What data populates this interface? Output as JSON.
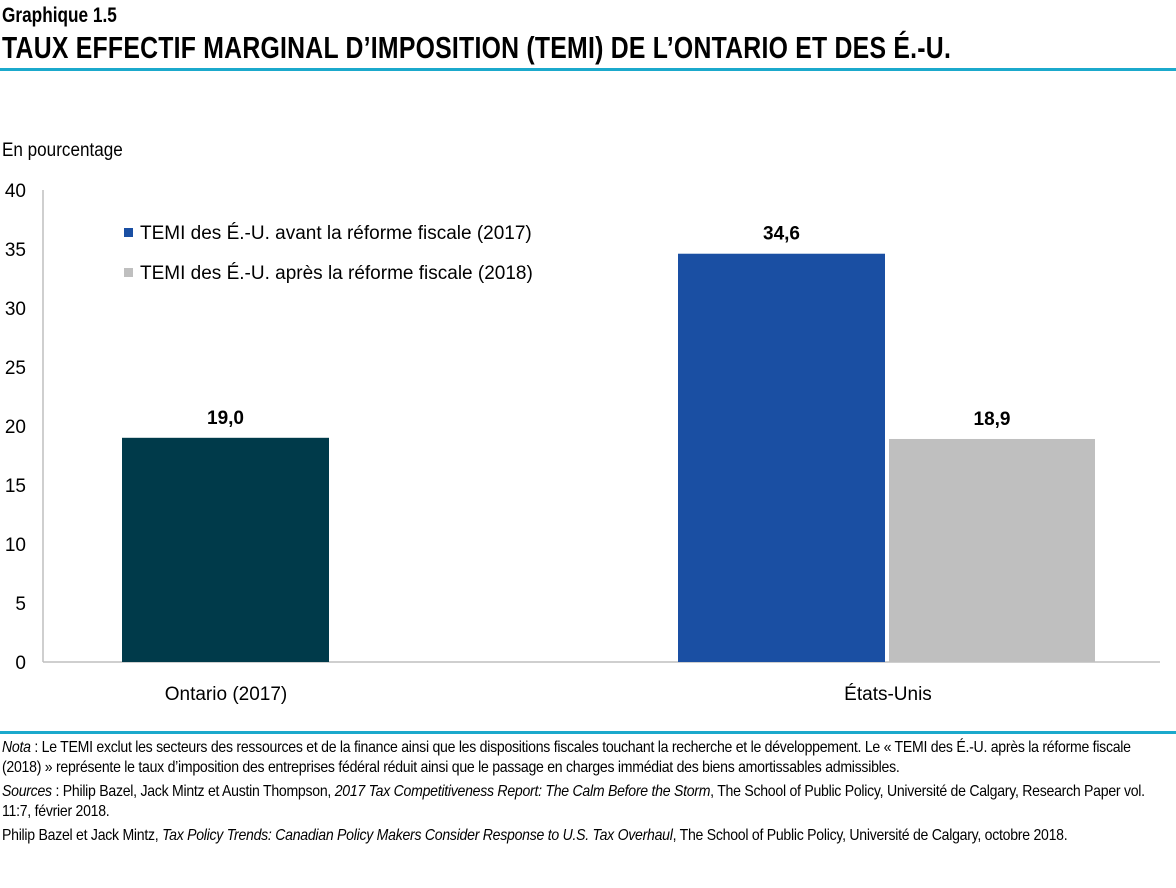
{
  "header": {
    "supertitle": "Graphique 1.5",
    "title": "TAUX EFFECTIF MARGINAL D’IMPOSITION (TEMI) DE L’ONTARIO ET DES É.-U."
  },
  "colors": {
    "accent": "#1ba9cc",
    "ontario": "#003a4a",
    "us_before": "#1a4fa3",
    "us_after": "#bfbfbf"
  },
  "chart_data": {
    "type": "bar",
    "ylabel": "En pourcentage",
    "ylim": [
      0,
      40
    ],
    "yticks": [
      "0",
      "5",
      "10",
      "15",
      "20",
      "25",
      "30",
      "35",
      "40"
    ],
    "categories": [
      "Ontario (2017)",
      "États-Unis"
    ],
    "legend_position": "top-left",
    "grid": false,
    "legend": [
      {
        "label": "TEMI des É.-U. avant la réforme fiscale (2017)",
        "color": "#1a4fa3"
      },
      {
        "label": "TEMI des É.-U. après la réforme fiscale (2018)",
        "color": "#bfbfbf"
      }
    ],
    "bars": [
      {
        "category": "Ontario (2017)",
        "value": 19.0,
        "label": "19,0",
        "color": "#003a4a"
      },
      {
        "category": "États-Unis",
        "series": "TEMI des É.-U. avant la réforme fiscale (2017)",
        "value": 34.6,
        "label": "34,6",
        "color": "#1a4fa3"
      },
      {
        "category": "États-Unis",
        "series": "TEMI des É.-U. après la réforme fiscale (2018)",
        "value": 18.9,
        "label": "18,9",
        "color": "#bfbfbf"
      }
    ]
  },
  "notes": {
    "nota_label": "Nota",
    "nota_text": " : Le TEMI exclut les secteurs des ressources et de la finance ainsi que les dispositions fiscales touchant la recherche et le développement. Le « TEMI des É.-U. après la réforme fiscale (2018) » représente le taux d’imposition des entreprises fédéral réduit ainsi que le passage en charges immédiat des biens amortissables admissibles.",
    "sources_label": "Sources",
    "src1_a": " : Philip Bazel, Jack Mintz et Austin Thompson, ",
    "src1_title": "2017 Tax Competitiveness Report: The Calm Before the Storm",
    "src1_b": ", The School of Public Policy, Université de Calgary, Research Paper vol. 11:7, février 2018.",
    "src2_a": "Philip Bazel et Jack Mintz, ",
    "src2_title": "Tax Policy Trends: Canadian Policy Makers Consider Response to U.S. Tax Overhaul",
    "src2_b": ", The School of Public Policy, Université de Calgary, octobre 2018."
  }
}
